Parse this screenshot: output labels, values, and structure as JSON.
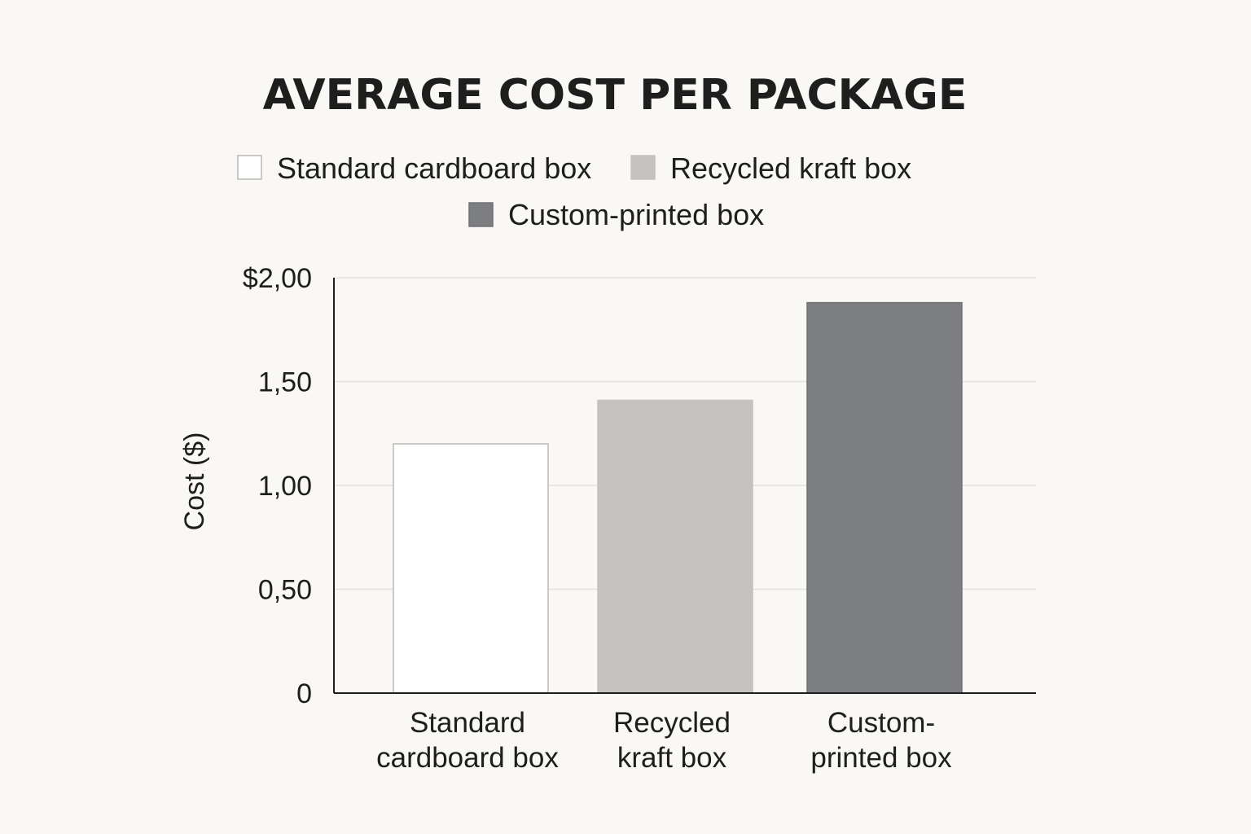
{
  "chart_data": {
    "type": "bar",
    "title": "AVERAGE COST PER PACKAGE",
    "xlabel": "",
    "ylabel": "Cost ($)",
    "categories": [
      "Standard cardboard box",
      "Recycled kraft box",
      "Custom-printed box"
    ],
    "category_labels": [
      [
        "Standard",
        "cardboard box"
      ],
      [
        "Recycled",
        "kraft box"
      ],
      [
        "Custom-",
        "printed box"
      ]
    ],
    "values": [
      1.2,
      1.41,
      1.88
    ],
    "ylim": [
      0,
      2
    ],
    "yticks": [
      0,
      0.5,
      1,
      1.5,
      2
    ],
    "ytick_labels": [
      "0",
      "0,50",
      "1,00",
      "1,50",
      "$2,00"
    ],
    "grid": true,
    "legend": {
      "placement": "top-center",
      "entries": [
        "Standard cardboard box",
        "Recycled kraft box",
        "Custom-printed box"
      ]
    },
    "colors": {
      "fills": [
        "#ffffff",
        "#c4c3bf",
        "#7c7e81"
      ],
      "strokes": [
        "#b9b8b4",
        "#c4c3bf",
        "#6e7073"
      ],
      "gridline": "#e4e2dd",
      "axis": "#1e1e1e",
      "background": "#faf8f4"
    }
  }
}
